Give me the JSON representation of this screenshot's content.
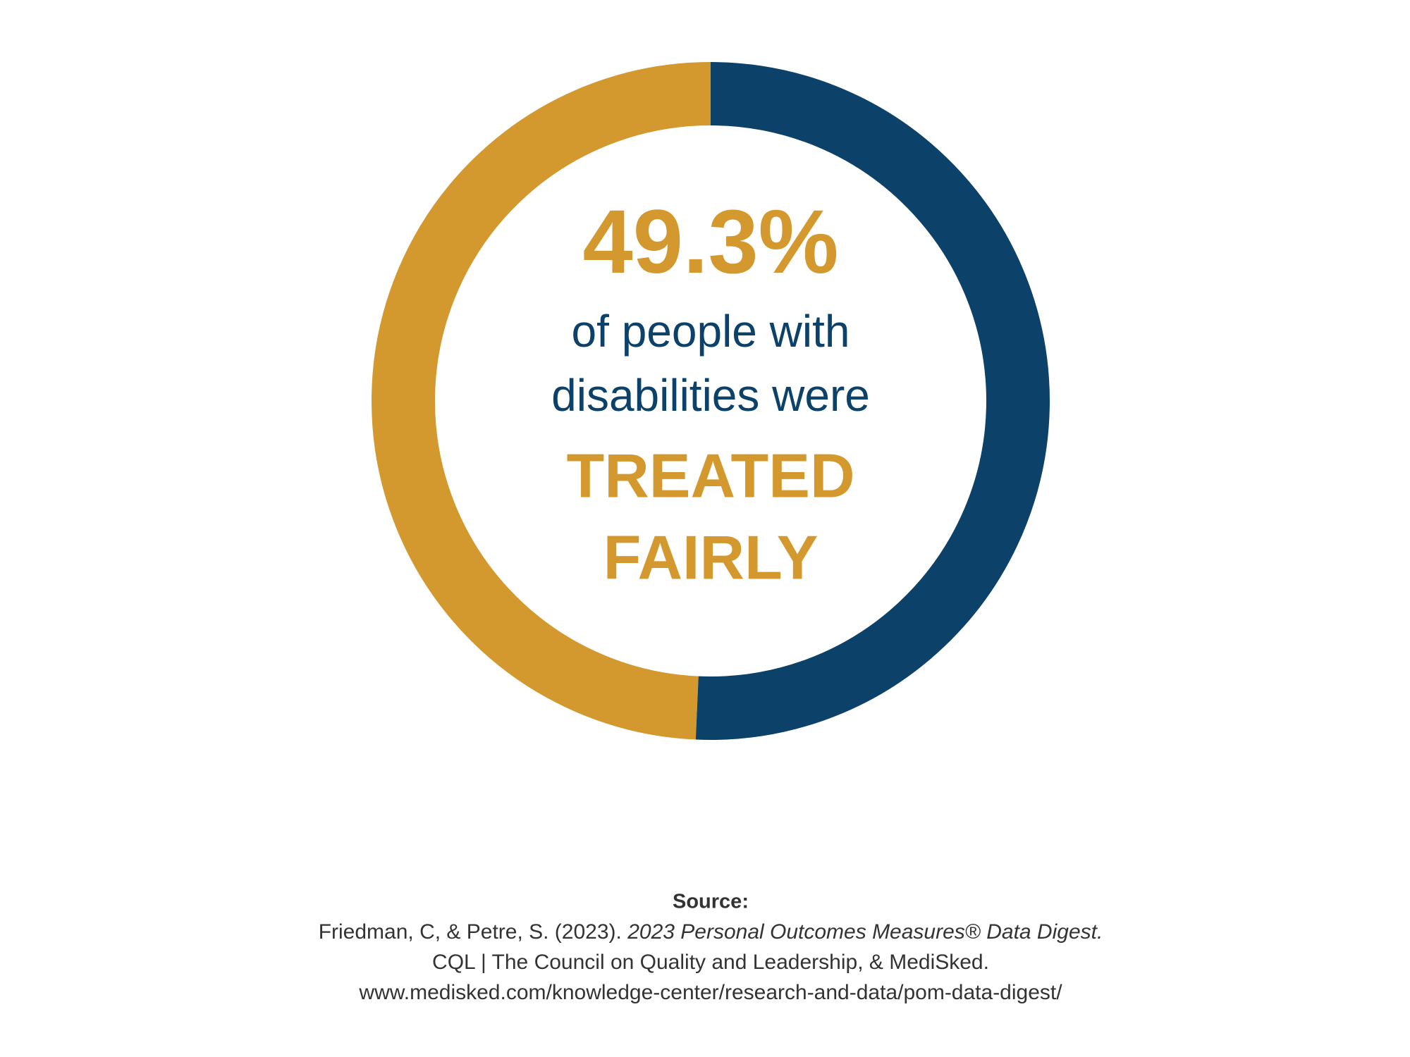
{
  "chart_data": {
    "type": "donut",
    "values": [
      50.7,
      49.3
    ],
    "value_labels": [
      null,
      "49.3%"
    ],
    "colors": [
      "#0c416a",
      "#d4992e"
    ],
    "text_lines": [
      "of people with",
      "disabilities were"
    ],
    "emphasis_lines": [
      "TREATED",
      "FAIRLY"
    ]
  },
  "source": {
    "heading": "Source:",
    "citation_plain": "Friedman, C, & Petre, S. (2023). ",
    "citation_italic": "2023 Personal Outcomes Measures® Data Digest.",
    "lines": [
      "CQL | The Council on Quality and Leadership, & MediSked.",
      "www.medisked.com/knowledge-center/research-and-data/pom-data-digest/"
    ]
  }
}
